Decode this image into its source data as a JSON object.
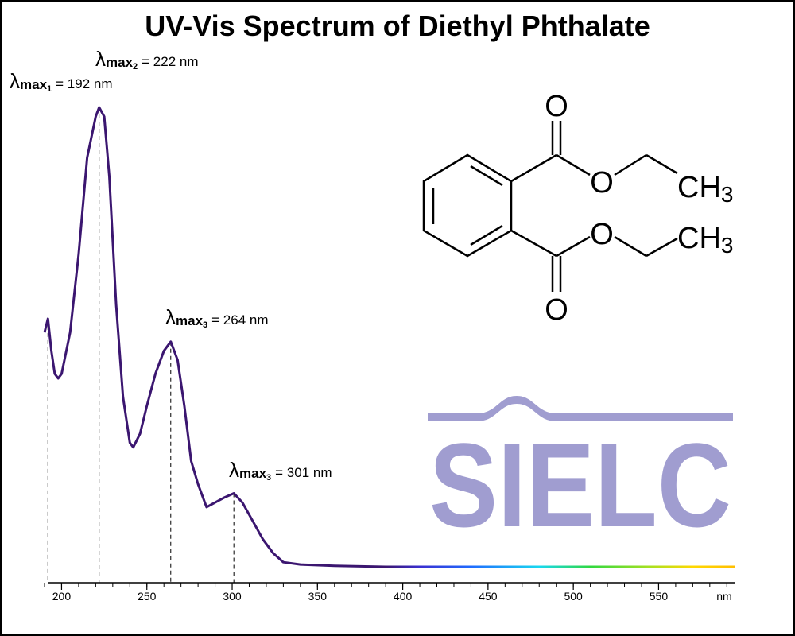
{
  "chart_data": {
    "type": "line",
    "title": "UV-Vis Spectrum of Diethyl Phthalate",
    "x": [
      190,
      192,
      194,
      196,
      198,
      200,
      205,
      210,
      215,
      220,
      222,
      225,
      228,
      232,
      236,
      240,
      242,
      246,
      250,
      255,
      260,
      264,
      268,
      272,
      276,
      280,
      285,
      290,
      295,
      301,
      306,
      312,
      318,
      324,
      330,
      340,
      360,
      390,
      595
    ],
    "values": [
      0.51,
      0.54,
      0.47,
      0.42,
      0.41,
      0.42,
      0.51,
      0.68,
      0.89,
      0.98,
      1.0,
      0.98,
      0.85,
      0.57,
      0.37,
      0.27,
      0.26,
      0.29,
      0.35,
      0.42,
      0.47,
      0.49,
      0.45,
      0.35,
      0.23,
      0.18,
      0.13,
      0.14,
      0.15,
      0.16,
      0.14,
      0.1,
      0.06,
      0.03,
      0.01,
      0.005,
      0.002,
      0,
      0
    ],
    "color": "#3b1670",
    "xlim": [
      190,
      595
    ],
    "ylim": [
      0,
      1
    ],
    "xticks": [
      200,
      250,
      300,
      350,
      400,
      450,
      500,
      550
    ],
    "xminorticks": [
      190,
      200,
      210,
      220,
      230,
      240,
      250,
      260,
      270,
      280,
      290,
      300,
      310,
      320,
      330,
      340,
      350,
      360,
      370,
      380,
      390,
      400,
      410,
      420,
      430,
      440,
      450,
      460,
      470,
      480,
      490,
      500,
      510,
      520,
      530,
      540,
      550,
      560,
      570,
      580,
      590
    ],
    "xunit": "nm",
    "annotations": [
      {
        "symbol": "λ",
        "sub": "max",
        "index": "1",
        "text": "= 192 nm",
        "x": 192
      },
      {
        "symbol": "λ",
        "sub": "max",
        "index": "2",
        "text": "= 222 nm",
        "x": 222
      },
      {
        "symbol": "λ",
        "sub": "max",
        "index": "3",
        "text": "= 264 nm",
        "x": 264
      },
      {
        "symbol": "λ",
        "sub": "max",
        "index": "3",
        "text": "= 301 nm",
        "x": 301
      }
    ]
  },
  "molecule": {
    "oxygens": [
      "O",
      "O",
      "O",
      "O"
    ],
    "groups": [
      {
        "main": "CH",
        "sub": "3"
      },
      {
        "main": "CH",
        "sub": "3"
      }
    ]
  },
  "logo": "SIELC"
}
